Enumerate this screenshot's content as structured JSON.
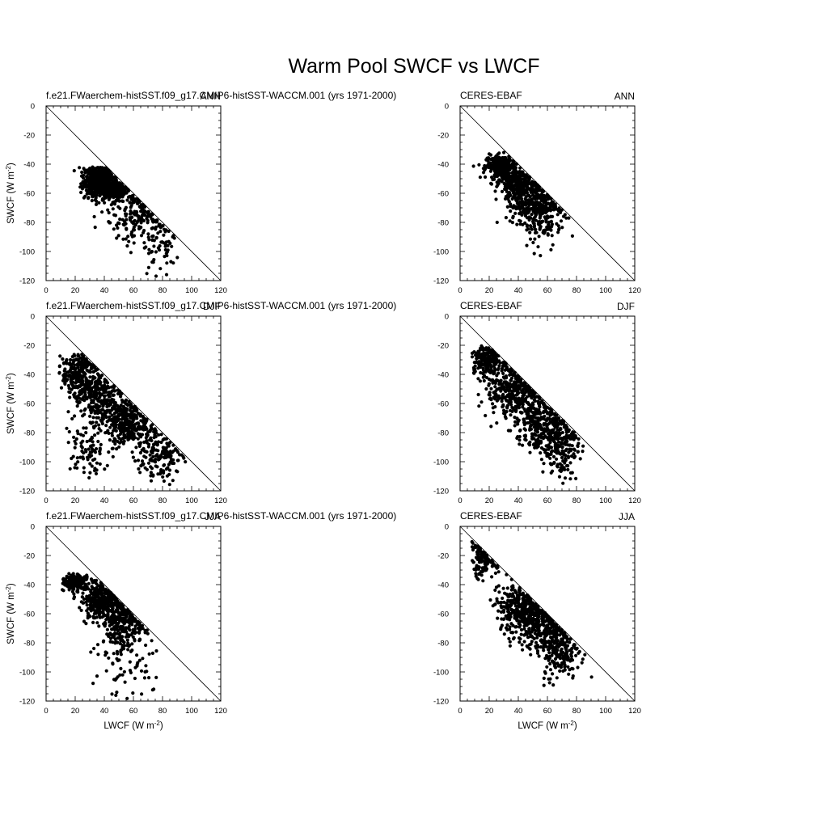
{
  "figure": {
    "title": "Warm Pool SWCF vs LWCF",
    "xlabel_main": "LWCF (W m",
    "ylabel_main": "SWCF (W m",
    "unit_exponent": "-2",
    "unit_close": ")",
    "colors": {
      "points": "#000000",
      "axes": "#000000",
      "background": "#ffffff"
    }
  },
  "chart_data": [
    {
      "type": "scatter",
      "left_title": "f.e21.FWaerchem-histSST.f09_g17.CMIP6-histSST-WACCM.001 (yrs 1971-2000)",
      "right_title": "ANN",
      "xlim": [
        0,
        120
      ],
      "ylim": [
        -120,
        0
      ],
      "xticks": [
        0,
        20,
        40,
        60,
        80,
        100,
        120
      ],
      "yticks": [
        0,
        -20,
        -40,
        -60,
        -80,
        -100,
        -120
      ],
      "show_xlabel": false,
      "show_ylabel": true,
      "reference_line": "y = -x",
      "clusters": [
        {
          "center": [
            36,
            -52
          ],
          "spread": [
            5,
            6
          ],
          "count": 520
        },
        {
          "center": [
            48,
            -58
          ],
          "spread": [
            5,
            4
          ],
          "count": 200
        },
        {
          "center": [
            62,
            -76
          ],
          "spread": [
            10,
            9
          ],
          "count": 170
        },
        {
          "center": [
            80,
            -98
          ],
          "spread": [
            7,
            9
          ],
          "count": 55
        }
      ],
      "y_bounds": [
        -120,
        -42
      ]
    },
    {
      "type": "scatter",
      "left_title": "CERES-EBAF",
      "right_title": "ANN",
      "xlim": [
        0,
        120
      ],
      "ylim": [
        -120,
        0
      ],
      "xticks": [
        0,
        20,
        40,
        60,
        80,
        100,
        120
      ],
      "yticks": [
        0,
        -20,
        -40,
        -60,
        -80,
        -100,
        -120
      ],
      "show_xlabel": false,
      "show_ylabel": false,
      "reference_line": "y = -x",
      "clusters": [
        {
          "center": [
            28,
            -42
          ],
          "spread": [
            5,
            4
          ],
          "count": 260
        },
        {
          "center": [
            40,
            -55
          ],
          "spread": [
            6,
            6
          ],
          "count": 300
        },
        {
          "center": [
            52,
            -68
          ],
          "spread": [
            8,
            8
          ],
          "count": 280
        },
        {
          "center": [
            58,
            -82
          ],
          "spread": [
            7,
            9
          ],
          "count": 70
        }
      ],
      "y_bounds": [
        -104,
        -31
      ]
    },
    {
      "type": "scatter",
      "left_title": "f.e21.FWaerchem-histSST.f09_g17.CMIP6-histSST-WACCM.001 (yrs 1971-2000)",
      "right_title": "DJF",
      "xlim": [
        0,
        120
      ],
      "ylim": [
        -120,
        0
      ],
      "xticks": [
        0,
        20,
        40,
        60,
        80,
        100,
        120
      ],
      "yticks": [
        0,
        -20,
        -40,
        -60,
        -80,
        -100,
        -120
      ],
      "show_xlabel": false,
      "show_ylabel": true,
      "reference_line": "y = -x",
      "clusters": [
        {
          "center": [
            22,
            -40
          ],
          "spread": [
            6,
            8
          ],
          "count": 260
        },
        {
          "center": [
            35,
            -55
          ],
          "spread": [
            8,
            9
          ],
          "count": 260
        },
        {
          "center": [
            55,
            -72
          ],
          "spread": [
            8,
            8
          ],
          "count": 330
        },
        {
          "center": [
            78,
            -95
          ],
          "spread": [
            8,
            9
          ],
          "count": 170
        },
        {
          "center": [
            28,
            -90
          ],
          "spread": [
            8,
            10
          ],
          "count": 90
        }
      ],
      "y_bounds": [
        -117,
        -26
      ]
    },
    {
      "type": "scatter",
      "left_title": "CERES-EBAF",
      "right_title": "DJF",
      "xlim": [
        0,
        120
      ],
      "ylim": [
        -120,
        0
      ],
      "xticks": [
        0,
        20,
        40,
        60,
        80,
        100,
        120
      ],
      "yticks": [
        0,
        -20,
        -40,
        -60,
        -80,
        -100,
        -120
      ],
      "show_xlabel": false,
      "show_ylabel": false,
      "reference_line": "y = -x",
      "clusters": [
        {
          "center": [
            18,
            -30
          ],
          "spread": [
            6,
            6
          ],
          "count": 230
        },
        {
          "center": [
            35,
            -50
          ],
          "spread": [
            8,
            10
          ],
          "count": 300
        },
        {
          "center": [
            55,
            -72
          ],
          "spread": [
            8,
            10
          ],
          "count": 320
        },
        {
          "center": [
            70,
            -90
          ],
          "spread": [
            6,
            10
          ],
          "count": 180
        }
      ],
      "y_bounds": [
        -120,
        -20
      ]
    },
    {
      "type": "scatter",
      "left_title": "f.e21.FWaerchem-histSST.f09_g17.CMIP6-histSST-WACCM.001 (yrs 1971-2000)",
      "right_title": "JJA",
      "xlim": [
        0,
        120
      ],
      "ylim": [
        -120,
        0
      ],
      "xticks": [
        0,
        20,
        40,
        60,
        80,
        100,
        120
      ],
      "yticks": [
        0,
        -20,
        -40,
        -60,
        -80,
        -100,
        -120
      ],
      "show_xlabel": true,
      "show_ylabel": true,
      "reference_line": "y = -x",
      "clusters": [
        {
          "center": [
            20,
            -38
          ],
          "spread": [
            4,
            4
          ],
          "count": 160
        },
        {
          "center": [
            38,
            -50
          ],
          "spread": [
            7,
            7
          ],
          "count": 330
        },
        {
          "center": [
            52,
            -65
          ],
          "spread": [
            7,
            8
          ],
          "count": 260
        },
        {
          "center": [
            55,
            -92
          ],
          "spread": [
            12,
            12
          ],
          "count": 80
        }
      ],
      "y_bounds": [
        -120,
        -32
      ]
    },
    {
      "type": "scatter",
      "left_title": "CERES-EBAF",
      "right_title": "JJA",
      "xlim": [
        0,
        120
      ],
      "ylim": [
        -120,
        0
      ],
      "xticks": [
        0,
        20,
        40,
        60,
        80,
        100,
        120
      ],
      "yticks": [
        0,
        -20,
        -40,
        -60,
        -80,
        -100,
        -120
      ],
      "show_xlabel": true,
      "show_ylabel": false,
      "reference_line": "y = -x",
      "clusters": [
        {
          "center": [
            15,
            -22
          ],
          "spread": [
            5,
            7
          ],
          "count": 130
        },
        {
          "center": [
            40,
            -55
          ],
          "spread": [
            8,
            8
          ],
          "count": 270
        },
        {
          "center": [
            55,
            -68
          ],
          "spread": [
            9,
            10
          ],
          "count": 300
        },
        {
          "center": [
            68,
            -88
          ],
          "spread": [
            7,
            9
          ],
          "count": 180
        }
      ],
      "y_bounds": [
        -110,
        -9
      ]
    }
  ]
}
